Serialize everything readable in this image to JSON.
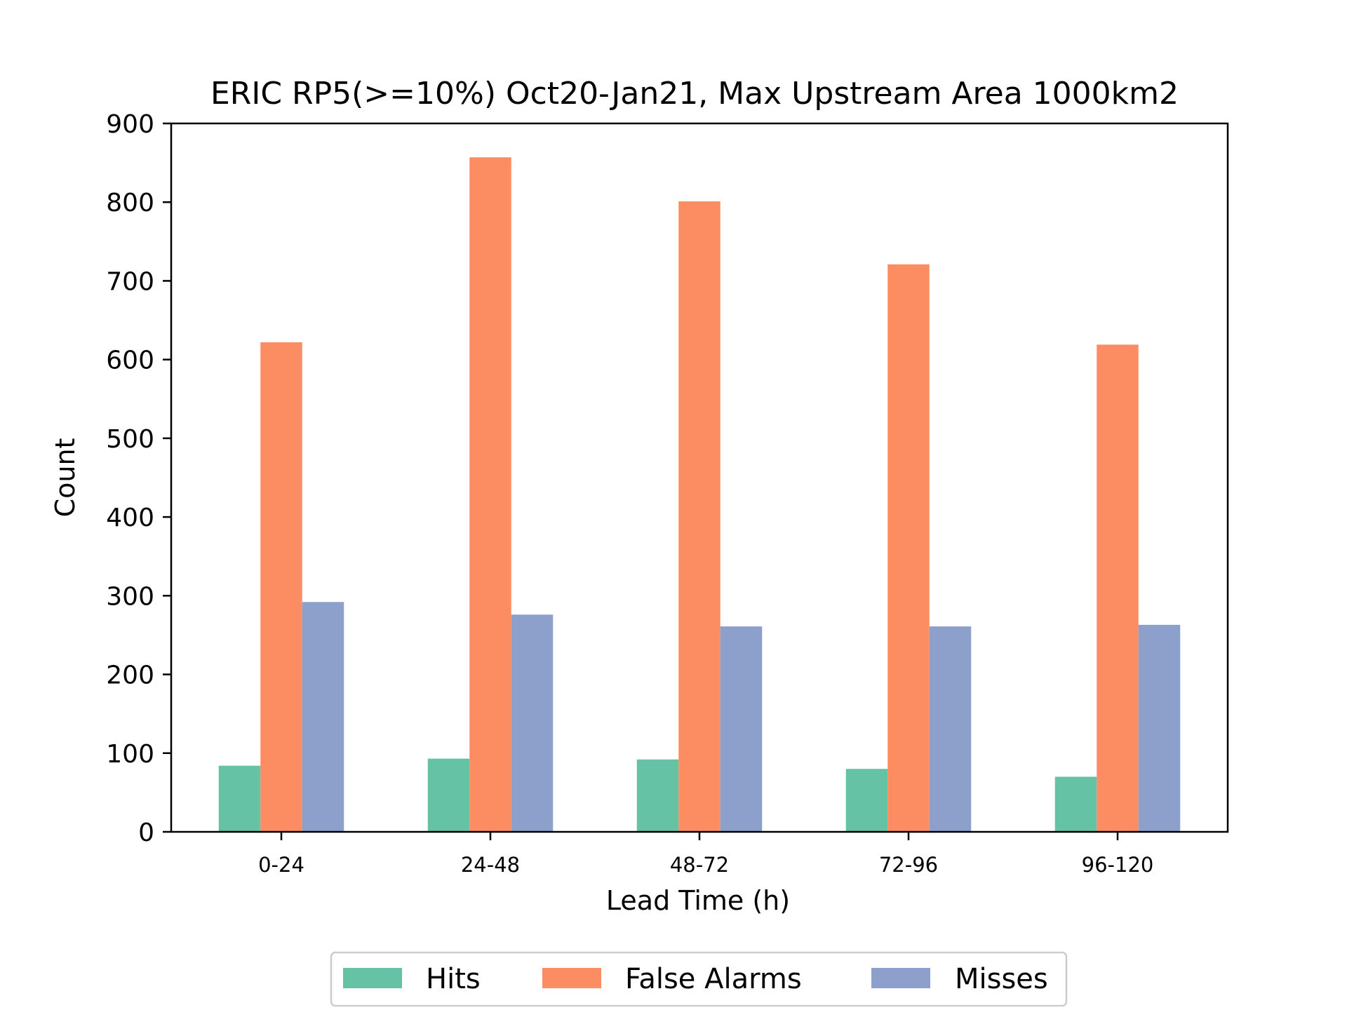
{
  "chart_data": {
    "type": "bar",
    "title": "ERIC RP5(>=10%) Oct20-Jan21, Max Upstream Area 1000km2",
    "xlabel": "Lead Time (h)",
    "ylabel": "Count",
    "categories": [
      "0-24",
      "24-48",
      "48-72",
      "72-96",
      "96-120"
    ],
    "ylim": [
      0,
      900
    ],
    "yticks": [
      0,
      100,
      200,
      300,
      400,
      500,
      600,
      700,
      800,
      900
    ],
    "grid": false,
    "legend_position": "bottom-center",
    "series": [
      {
        "name": "Hits",
        "color": "#66c2a5",
        "values": [
          84,
          93,
          92,
          80,
          70
        ]
      },
      {
        "name": "False Alarms",
        "color": "#fc8d62",
        "values": [
          622,
          857,
          801,
          721,
          619
        ]
      },
      {
        "name": "Misses",
        "color": "#8da0cb",
        "values": [
          292,
          276,
          261,
          261,
          263
        ]
      }
    ]
  }
}
